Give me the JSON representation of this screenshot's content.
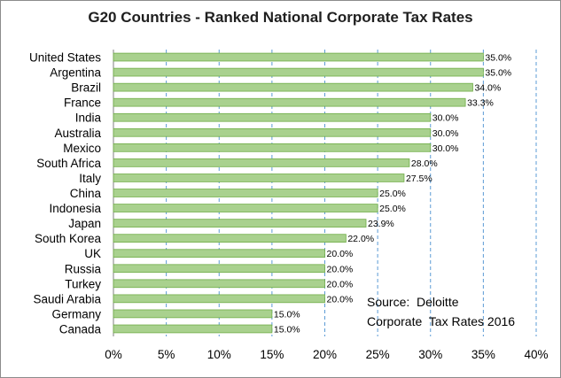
{
  "chart_data": {
    "type": "bar",
    "orientation": "horizontal",
    "title": "G20 Countries - Ranked National Corporate Tax Rates",
    "categories": [
      "United States",
      "Argentina",
      "Brazil",
      "France",
      "India",
      "Australia",
      "Mexico",
      "South Africa",
      "Italy",
      "China",
      "Indonesia",
      "Japan",
      "South Korea",
      "UK",
      "Russia",
      "Turkey",
      "Saudi Arabia",
      "Germany",
      "Canada"
    ],
    "values": [
      35.0,
      35.0,
      34.0,
      33.3,
      30.0,
      30.0,
      30.0,
      28.0,
      27.5,
      25.0,
      25.0,
      23.9,
      22.0,
      20.0,
      20.0,
      20.0,
      20.0,
      15.0,
      15.0
    ],
    "data_labels": [
      "35.0%",
      "35.0%",
      "34.0%",
      "33.3%",
      "30.0%",
      "30.0%",
      "30.0%",
      "28.0%",
      "27.5%",
      "25.0%",
      "25.0%",
      "23.9%",
      "22.0%",
      "20.0%",
      "20.0%",
      "20.0%",
      "20.0%",
      "15.0%",
      "15.0%"
    ],
    "x_ticks": [
      "0%",
      "5%",
      "10%",
      "15%",
      "20%",
      "25%",
      "30%",
      "35%",
      "40%"
    ],
    "xlim": [
      0,
      40
    ],
    "grid": "vertical dashed",
    "bar_color": "#a9d18e",
    "bar_edge_color": "#70ad47",
    "grid_color": "#5b9bd5",
    "annotation": [
      "Source:  Deloitte",
      "Corporate  Tax Rates 2016"
    ]
  }
}
